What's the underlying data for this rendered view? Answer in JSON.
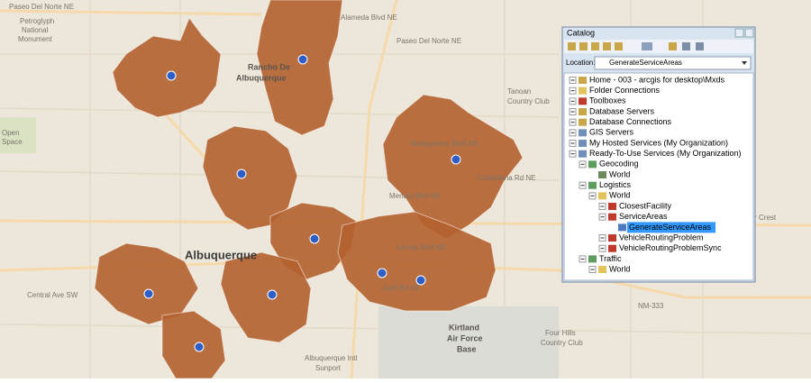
{
  "map": {
    "labels": [
      "Paseo Del Norte NE",
      "Petroglyph",
      "National",
      "Monument",
      "Rancho De",
      "Albuquerque",
      "Alameda Blvd NE",
      "Paseo Del Norte NE",
      "Tanoan",
      "Country Club",
      "Open",
      "Space",
      "Montgomery Blvd NE",
      "Menaul Blvd NE",
      "Candelaria Rd NE",
      "Lomas Blvd NE",
      "Albuquerque",
      "Central Ave SW",
      "Zuni Rd SE",
      "Kirtland",
      "Air Force",
      "Base",
      "Cedar Crest",
      "Four Hills",
      "Country Club",
      "NM-333",
      "Albuquerque Intl",
      "Sunport"
    ]
  },
  "catalog": {
    "title": "Catalog",
    "location_label": "Location:",
    "location_value": "GenerateServiceAreas",
    "tree": [
      "Home - 003 - arcgis for desktop\\Mxds",
      "Folder Connections",
      "Toolboxes",
      "Database Servers",
      "Database Connections",
      "GIS Servers",
      "My Hosted Services (My Organization)",
      "Ready-To-Use Services (My Organization)",
      "Geocoding",
      "World",
      "Logistics",
      "World",
      "ClosestFacility",
      "ServiceAreas",
      "GenerateServiceAreas",
      "VehicleRoutingProblem",
      "VehicleRoutingProblemSync",
      "Traffic",
      "World"
    ]
  }
}
